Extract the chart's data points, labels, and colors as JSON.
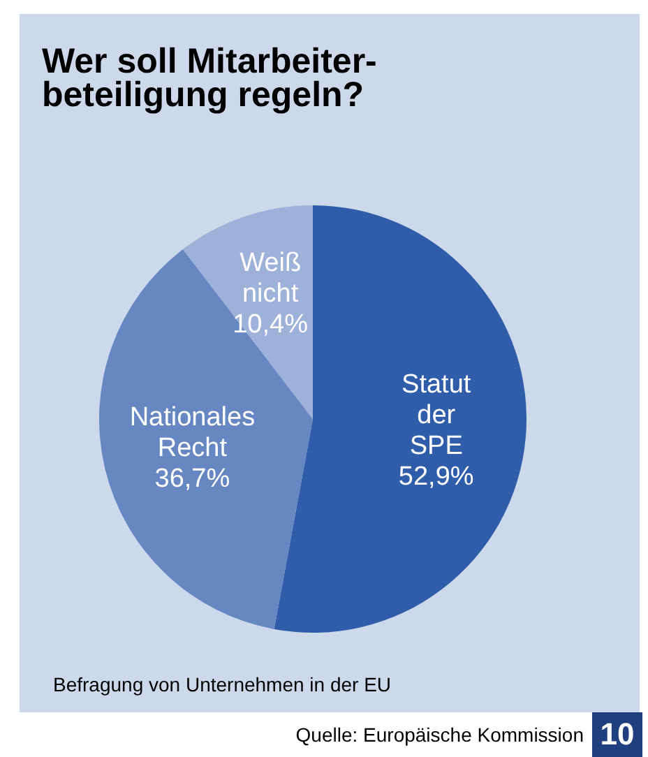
{
  "chart_data": {
    "type": "pie",
    "title": "Wer soll Mitarbeiter-\nbeteiligung regeln?",
    "categories": [
      "Statut der SPE",
      "Nationales Recht",
      "Weiß nicht"
    ],
    "values": [
      52.9,
      36.7,
      10.4
    ],
    "value_labels": [
      "52,9%",
      "36,7%",
      "10,4%"
    ],
    "colors": [
      "#2f5da9",
      "#6787c2",
      "#9db1d9"
    ],
    "annotations": [
      "Befragung von Unternehmen in der EU",
      "Quelle: Europäische Kommission",
      "10"
    ]
  }
}
